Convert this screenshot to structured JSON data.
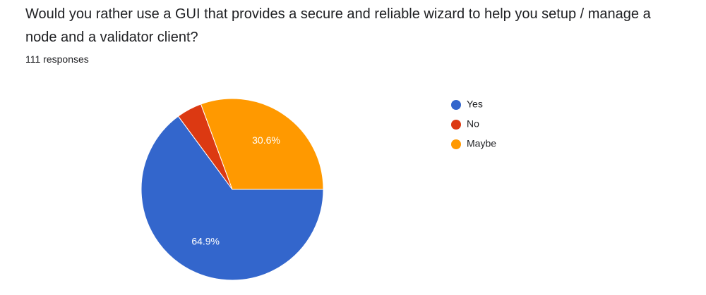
{
  "chart_data": {
    "type": "pie",
    "title": "Would you rather use a GUI that provides a secure and reliable wizard to help you setup / manage a node and a validator client?",
    "subtitle": "111 responses",
    "categories": [
      "Yes",
      "No",
      "Maybe"
    ],
    "values": [
      64.9,
      4.5,
      30.6
    ],
    "value_labels": [
      "64.9%",
      null,
      "30.6%"
    ],
    "colors": [
      "#3366cc",
      "#dc3912",
      "#ff9900"
    ],
    "legend": "right"
  }
}
